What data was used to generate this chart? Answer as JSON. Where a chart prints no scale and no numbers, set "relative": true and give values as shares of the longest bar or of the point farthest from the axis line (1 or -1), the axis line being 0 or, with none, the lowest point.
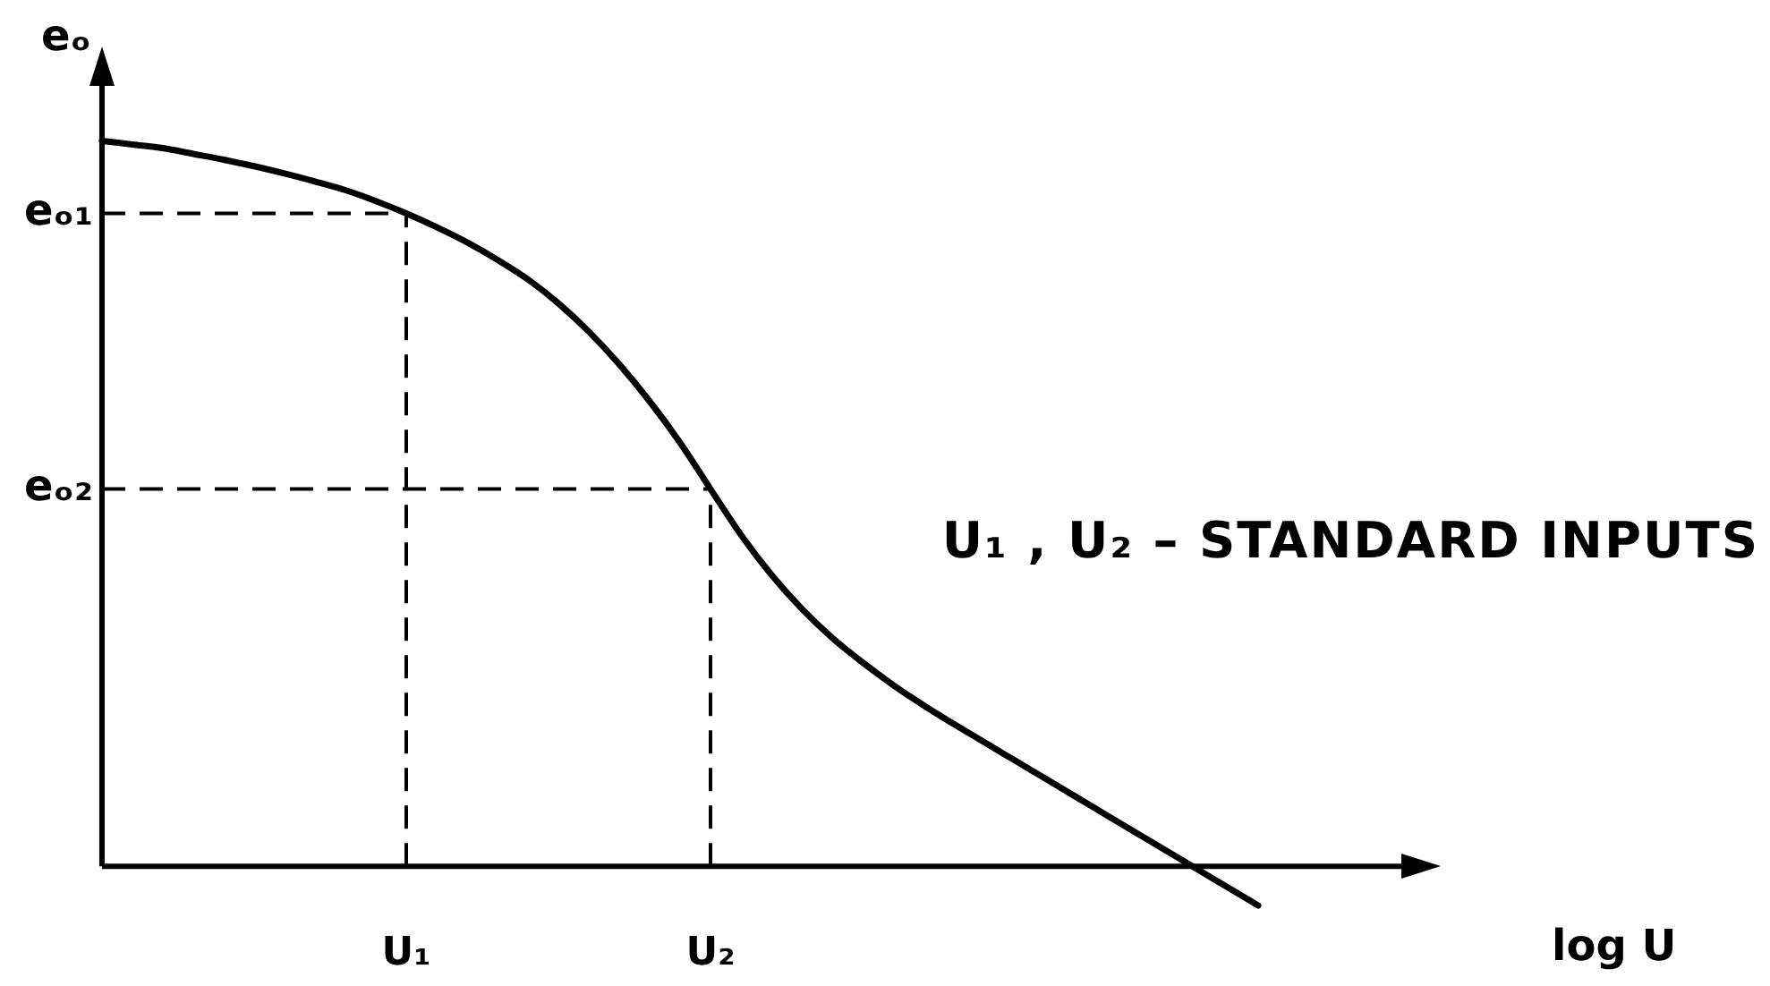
{
  "chart_data": {
    "type": "line",
    "xlabel": "log U",
    "ylabel": "eₒ",
    "relative": true,
    "marker": "none",
    "line_style": "solid",
    "categories": [
      null,
      null,
      null,
      null,
      null,
      null,
      null,
      null,
      null,
      null,
      "U₁",
      null,
      null,
      null,
      null,
      null,
      null,
      null,
      null,
      null,
      "U₂",
      null,
      null,
      null,
      null,
      null,
      null,
      null,
      null,
      null,
      null,
      null,
      null,
      null,
      null,
      null,
      null,
      null,
      null,
      null,
      null,
      null,
      null,
      null,
      null
    ],
    "series": [
      {
        "color": "#000000",
        "values": [
          1.0,
          0.995,
          0.99,
          0.982,
          0.974,
          0.965,
          0.955,
          0.944,
          0.932,
          0.917,
          0.9,
          0.881,
          0.86,
          0.836,
          0.809,
          0.776,
          0.737,
          0.692,
          0.641,
          0.584,
          0.52,
          0.457,
          0.402,
          0.355,
          0.315,
          0.281,
          0.25,
          0.222,
          0.196,
          0.171,
          0.146,
          0.121,
          0.096,
          0.071,
          0.046,
          0.021,
          -0.004,
          -0.029,
          -0.054,
          null,
          null,
          null,
          null,
          null,
          null
        ]
      }
    ],
    "ref_lines": [
      {
        "axis": "y",
        "value": 0.9,
        "label": "eₒ₁",
        "line_style": "dashed",
        "color": "#000000"
      },
      {
        "axis": "y",
        "value": 0.52,
        "label": "eₒ₂",
        "line_style": "dashed",
        "color": "#000000"
      },
      {
        "axis": "x",
        "value": "U₁",
        "line_style": "dashed",
        "color": "#000000"
      },
      {
        "axis": "x",
        "value": "U₂",
        "line_style": "dashed",
        "color": "#000000"
      }
    ],
    "annotations": [
      "U₁ , U₂ – STANDARD INPUTS"
    ]
  }
}
